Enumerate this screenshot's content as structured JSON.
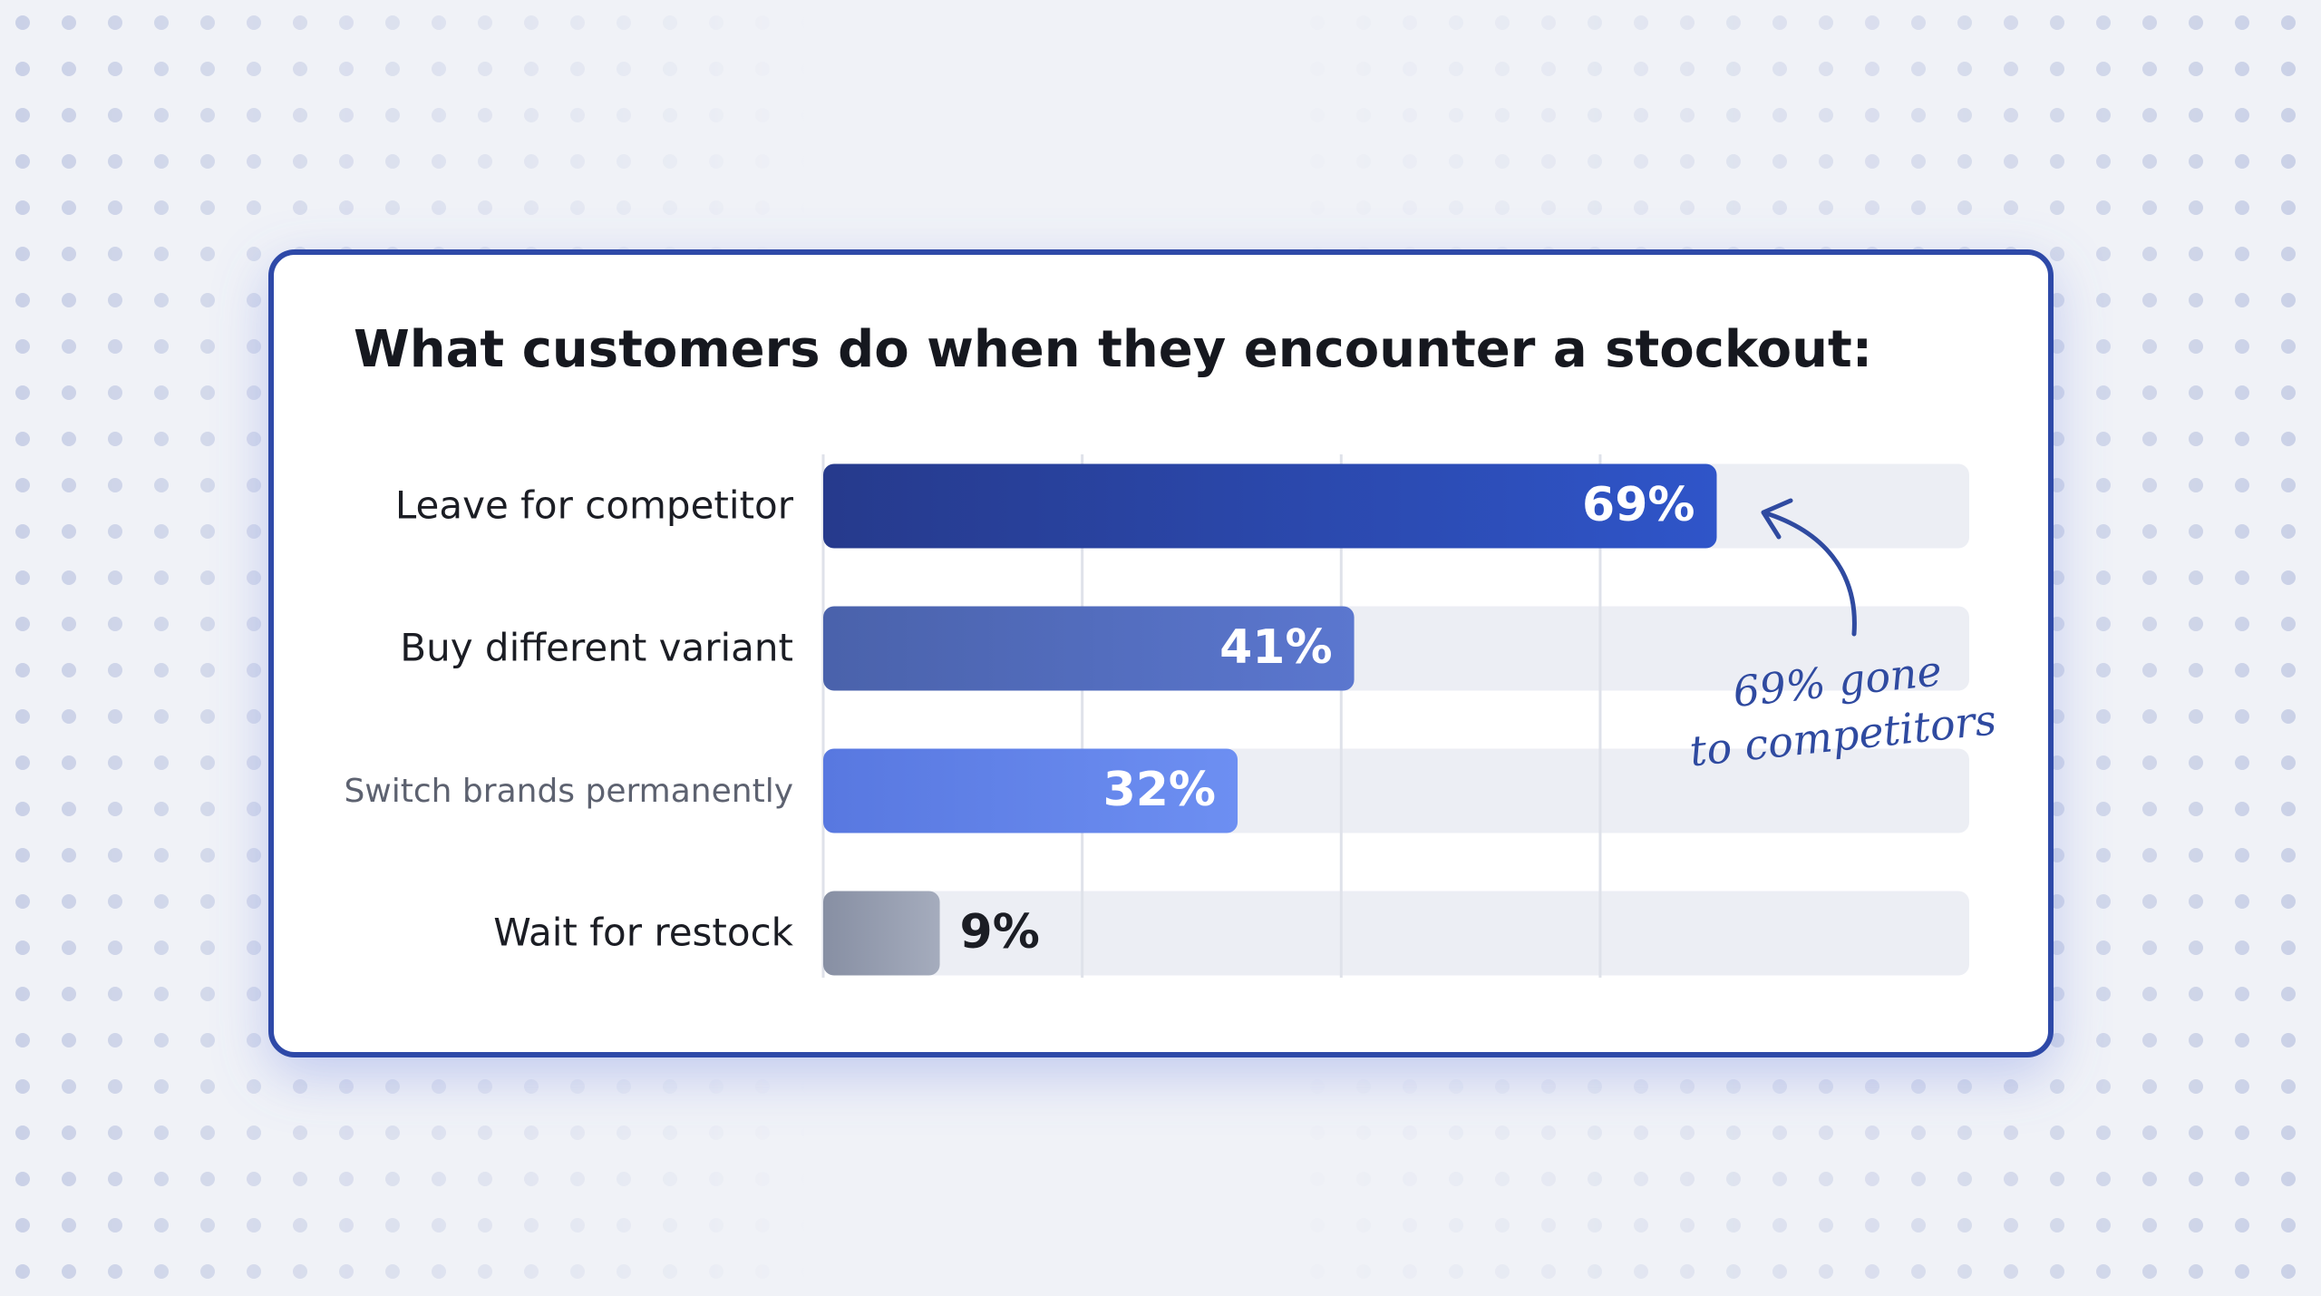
{
  "chart_data": {
    "type": "hbar",
    "title": "What customers do when they encounter a stockout:",
    "categories": [
      "Leave for competitor",
      "Buy different variant",
      "Switch brands permanently",
      "Wait for restock"
    ],
    "values": [
      69,
      41,
      32,
      9
    ],
    "value_labels": [
      "69%",
      "41%",
      "32%",
      "9%"
    ],
    "colors": [
      [
        "#263a8c",
        "#2f55c9"
      ],
      [
        "#4a62ab",
        "#5b77cf"
      ],
      [
        "#5878e0",
        "#6d8ff2"
      ],
      [
        "#878fa3",
        "#a5acbd"
      ]
    ],
    "xlim": [
      0,
      88.5
    ],
    "xticks": [
      0,
      20,
      40,
      60
    ],
    "grid": true,
    "annotation": "69% gone to competitors"
  }
}
